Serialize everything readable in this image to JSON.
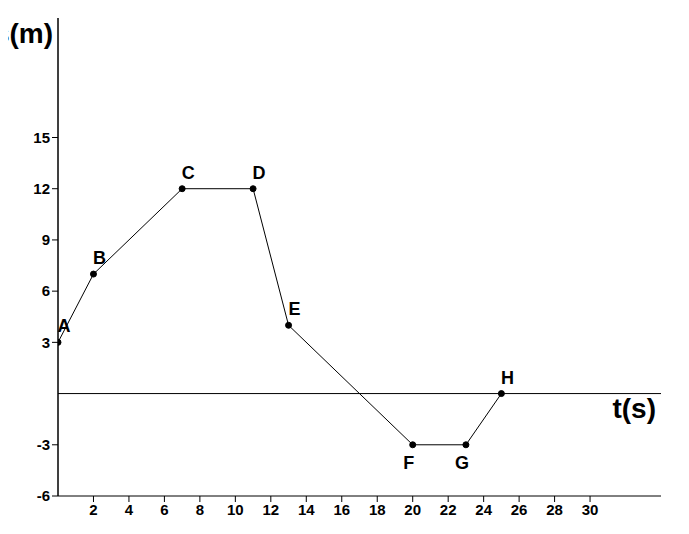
{
  "chart_data": {
    "type": "line",
    "x_label": "t(s)",
    "y_label": "s(m)",
    "x": [
      0,
      2,
      7,
      11,
      13,
      20,
      23,
      25
    ],
    "values": [
      3,
      7,
      12,
      12,
      4,
      -3,
      -3,
      0
    ],
    "annotations": [
      "A",
      "B",
      "C",
      "D",
      "E",
      "F",
      "G",
      "H"
    ],
    "color": "#000000",
    "marker": "circle",
    "xlim": [
      0,
      34
    ],
    "ylim": [
      -6,
      22
    ],
    "xticks": [
      2,
      4,
      6,
      8,
      10,
      12,
      14,
      16,
      18,
      20,
      22,
      24,
      26,
      28,
      30
    ],
    "yticks": [
      -6,
      -3,
      3,
      6,
      9,
      12,
      15
    ],
    "grid": false
  }
}
